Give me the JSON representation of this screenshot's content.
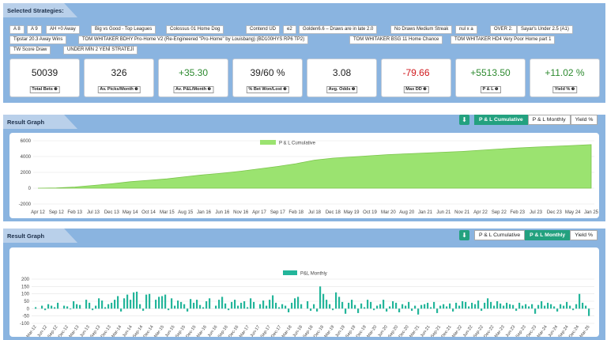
{
  "strategies": {
    "title": "Selected Strategies:",
    "tags": [
      "A 8",
      "A 9",
      "AH +0 Away",
      "Big vs Good - Top Leagues",
      "Colossus 01 Home Dog",
      "Contend UD",
      "e2",
      "Golden6.6 – Draws are in late 2.0",
      "No Draws Medium Streak",
      "nul x a",
      "OVER 2.",
      "Sayar's Under 2.5 (A1)",
      "Tipstar 20.3 Away Wins",
      "TOM WHITAKER BDHY Pro-Home V2 (Re-Engineered \"Pro-Home\" by Louisbang) (BD100HYS RP6 TP2)",
      "TOM WHITAKER BSG 11 Home Chance",
      "TOM WHITAKER HD4 Very Poor Home part 1",
      "TW Score Draw",
      "UNDER MİN 2 YENİ STRATEJİ"
    ]
  },
  "stats": [
    {
      "value": "50039",
      "label": "Total Bets",
      "tone": ""
    },
    {
      "value": "326",
      "label": "Av. Picks/Month",
      "tone": ""
    },
    {
      "value": "+35.30",
      "label": "Av. P&L/Month",
      "tone": "pos"
    },
    {
      "value": "39/60 %",
      "label": "% Bet Won/Lost",
      "tone": ""
    },
    {
      "value": "3.08",
      "label": "Avg. Odds",
      "tone": ""
    },
    {
      "value": "-79.66",
      "label": "Max DD",
      "tone": "neg"
    },
    {
      "value": "+5513.50",
      "label": "P & L",
      "tone": "pos"
    },
    {
      "value": "+11.02 %",
      "label": "Yield %",
      "tone": "pos"
    }
  ],
  "graph1": {
    "title": "Result Graph",
    "tabs": [
      "P & L Cumulative",
      "P & L Monthly",
      "Yield %"
    ],
    "active_tab": 0
  },
  "graph2": {
    "title": "Result Graph",
    "tabs": [
      "P & L Cumulative",
      "P & L Monthly",
      "Yield %"
    ],
    "active_tab": 1
  },
  "chart_data": [
    {
      "type": "area",
      "title": "",
      "series": [
        {
          "name": "P & L Cumulative",
          "color": "#9be370"
        }
      ],
      "ylim": [
        -2000,
        6000
      ],
      "yticks": [
        6000,
        4000,
        2000,
        0,
        -2000
      ],
      "xticks": [
        "Apr 12",
        "Sep 12",
        "Feb 13",
        "Jul 13",
        "Dec 13",
        "May 14",
        "Oct 14",
        "Mar 15",
        "Aug 15",
        "Jan 16",
        "Jun 16",
        "Nov 16",
        "Apr 17",
        "Sep 17",
        "Feb 18",
        "Jul 18",
        "Dec 18",
        "May 19",
        "Oct 19",
        "Mar 20",
        "Aug 20",
        "Jan 21",
        "Jun 21",
        "Nov 21",
        "Apr 22",
        "Sep 22",
        "Feb 23",
        "Jul 23",
        "Dec 23",
        "May 24",
        "Jan 25"
      ],
      "points": [
        [
          "Apr 12",
          0
        ],
        [
          "Sep 12",
          30
        ],
        [
          "Feb 13",
          150
        ],
        [
          "Jul 13",
          350
        ],
        [
          "Dec 13",
          560
        ],
        [
          "May 14",
          820
        ],
        [
          "Oct 14",
          1000
        ],
        [
          "Mar 15",
          1180
        ],
        [
          "Aug 15",
          1450
        ],
        [
          "Jan 16",
          1700
        ],
        [
          "Jun 16",
          1900
        ],
        [
          "Nov 16",
          2150
        ],
        [
          "Apr 17",
          2450
        ],
        [
          "Sep 17",
          2750
        ],
        [
          "Feb 18",
          3100
        ],
        [
          "Jul 18",
          3550
        ],
        [
          "Dec 18",
          3800
        ],
        [
          "May 19",
          3950
        ],
        [
          "Oct 19",
          4100
        ],
        [
          "Mar 20",
          4250
        ],
        [
          "Aug 20",
          4350
        ],
        [
          "Jan 21",
          4450
        ],
        [
          "Jun 21",
          4550
        ],
        [
          "Nov 21",
          4650
        ],
        [
          "Apr 22",
          4800
        ],
        [
          "Sep 22",
          4950
        ],
        [
          "Feb 23",
          5080
        ],
        [
          "Jul 23",
          5200
        ],
        [
          "Dec 23",
          5300
        ],
        [
          "May 24",
          5400
        ],
        [
          "Jan 25",
          5513
        ]
      ]
    },
    {
      "type": "bar",
      "title": "",
      "series": [
        {
          "name": "P&L Monthly",
          "color": "#23b59a"
        }
      ],
      "ylim": [
        -100,
        200
      ],
      "yticks": [
        200,
        150,
        100,
        50,
        0,
        -50,
        -100
      ],
      "xticks": [
        "Mar-12",
        "Jun-12",
        "Sep-12",
        "Dec-12",
        "Mar-13",
        "Jun-13",
        "Sep-13",
        "Dec-13",
        "Mar-14",
        "Jun-14",
        "Sep-14",
        "Dec-14",
        "Mar-15",
        "Jun-15",
        "Sep-15",
        "Dec-15",
        "Mar-16",
        "Jun-16",
        "Sep-16",
        "Dec-16",
        "Mar-17",
        "Jun-17",
        "Sep-17",
        "Dec-17",
        "Mar-18",
        "Jun-18",
        "Sep-18",
        "Dec-18",
        "Mar-19",
        "Jun-19",
        "Sep-19",
        "Dec-19",
        "Mar-20",
        "Jun-20",
        "Sep-20",
        "Dec-20",
        "Mar-21",
        "Jun-21",
        "Sep-21",
        "Dec-21",
        "Mar-22",
        "Jun-22",
        "Sep-22",
        "Dec-22",
        "Mar-23",
        "Jun-23",
        "Sep-23",
        "Dec-23",
        "Mar-24",
        "Jun-24",
        "Sep-24",
        "Dec-24",
        "Mar-25"
      ],
      "values": [
        10,
        0,
        20,
        -10,
        30,
        20,
        10,
        40,
        0,
        20,
        15,
        -5,
        50,
        30,
        25,
        0,
        60,
        40,
        -10,
        20,
        70,
        55,
        10,
        30,
        40,
        60,
        85,
        -20,
        70,
        95,
        60,
        110,
        115,
        30,
        -15,
        95,
        100,
        0,
        60,
        80,
        85,
        95,
        -10,
        70,
        20,
        55,
        45,
        30,
        -20,
        65,
        40,
        60,
        25,
        10,
        50,
        70,
        0,
        20,
        60,
        80,
        35,
        -10,
        45,
        60,
        20,
        40,
        50,
        10,
        70,
        45,
        0,
        30,
        55,
        20,
        60,
        90,
        40,
        10,
        30,
        20,
        -25,
        40,
        70,
        80,
        30,
        0,
        50,
        -15,
        30,
        -20,
        150,
        100,
        60,
        30,
        -10,
        110,
        80,
        45,
        -35,
        40,
        60,
        25,
        -30,
        35,
        10,
        60,
        45,
        -10,
        20,
        30,
        60,
        -20,
        15,
        50,
        40,
        -25,
        30,
        20,
        45,
        -15,
        20,
        -40,
        25,
        30,
        40,
        10,
        45,
        -30,
        20,
        30,
        15,
        35,
        -20,
        40,
        20,
        50,
        45,
        15,
        40,
        30,
        55,
        -15,
        40,
        70,
        45,
        20,
        50,
        35,
        20,
        40,
        30,
        25,
        -15,
        40,
        20,
        30,
        15,
        30,
        -35,
        25,
        50,
        20,
        40,
        30,
        15,
        -20,
        30,
        20,
        45,
        20,
        -10,
        30,
        100,
        40,
        20,
        -50
      ]
    }
  ]
}
